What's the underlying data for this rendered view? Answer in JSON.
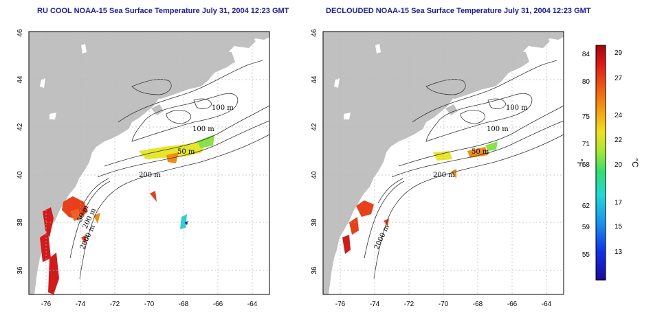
{
  "panels": [
    {
      "id": "left",
      "title": "RU COOL NOAA-15 Sea Surface Temperature July 31, 2004 12:23 GMT",
      "x_ticks": [
        "-76",
        "-74",
        "-72",
        "-70",
        "-68",
        "-66",
        "-64"
      ],
      "y_ticks": [
        "36",
        "38",
        "40",
        "42",
        "44",
        "46"
      ],
      "contour_labels": [
        "100 m",
        "100 m",
        "50 m",
        "200 m",
        "2000 m",
        "200 m",
        "50 m"
      ]
    },
    {
      "id": "right",
      "title": "DECLOUDED NOAA-15 Sea Surface Temperature July 31, 2004 12:23 GMT",
      "x_ticks": [
        "-76",
        "-74",
        "-72",
        "-70",
        "-68",
        "-66",
        "-64"
      ],
      "y_ticks": [
        "36",
        "38",
        "40",
        "42",
        "44",
        "46"
      ],
      "contour_labels": [
        "100 m",
        "100 m",
        "50 m",
        "200 m",
        "2000 m"
      ]
    }
  ],
  "colorbar": {
    "fahrenheit_unit": "°F",
    "celsius_unit": "°C",
    "fahrenheit_ticks": [
      "84",
      "80",
      "75",
      "71",
      "68",
      "62",
      "59",
      "55"
    ],
    "celsius_ticks": [
      "29",
      "27",
      "24",
      "22",
      "20",
      "17",
      "15",
      "13"
    ]
  },
  "map_extent": {
    "lon": [
      -77,
      -63
    ],
    "lat": [
      35,
      46
    ]
  },
  "colors": {
    "title": "#1a1aa6",
    "land": "#c0c0c0",
    "grid": "#b8b8b8",
    "warm": "#e8401a",
    "hot": "#d21a1a",
    "orange": "#f08c10",
    "yellow": "#e6e62a",
    "green": "#8ce04a"
  }
}
